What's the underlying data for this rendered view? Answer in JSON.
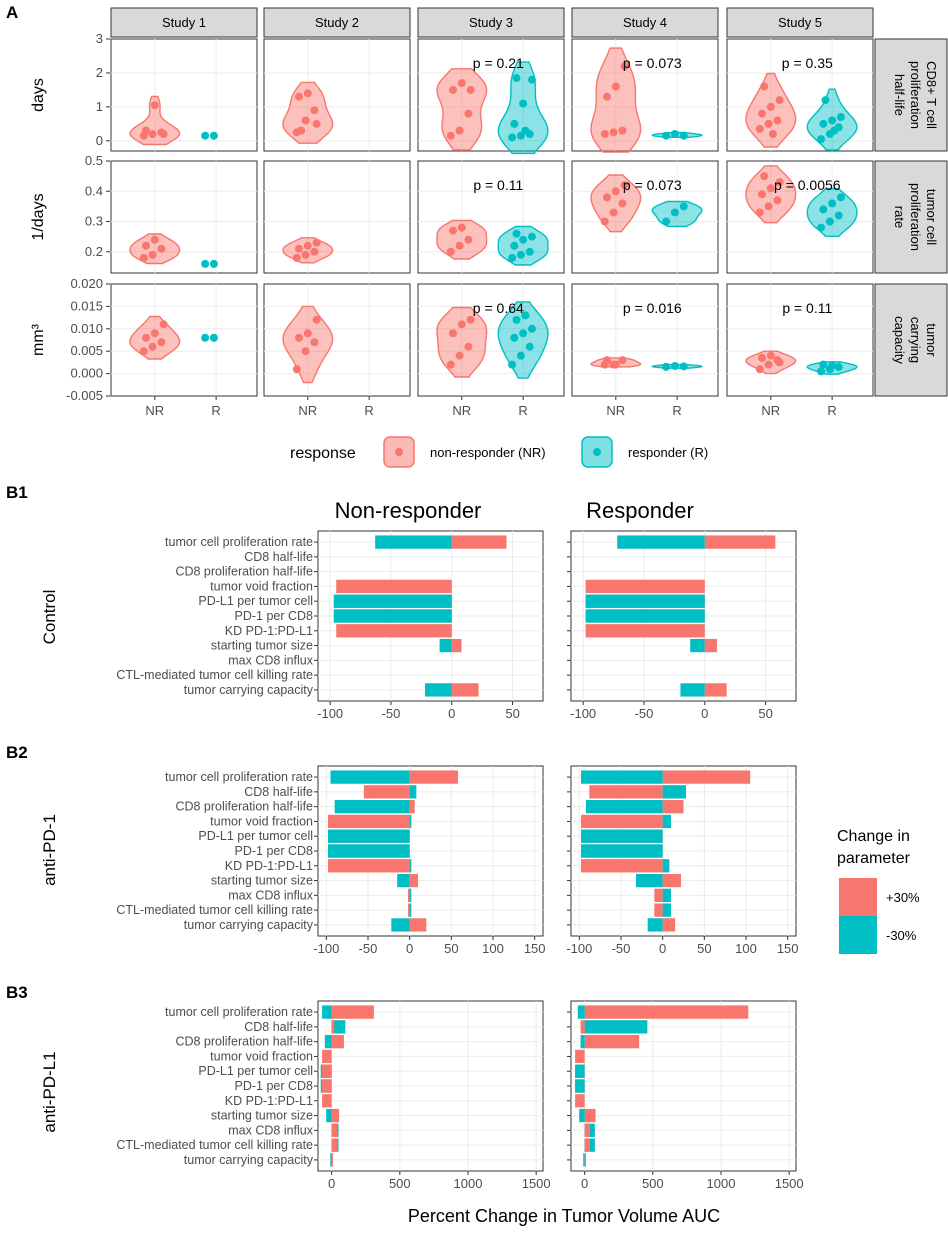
{
  "panel_a": {
    "label": "A",
    "studies": [
      "Study 1",
      "Study 2",
      "Study 3",
      "Study 4",
      "Study 5"
    ],
    "rows": [
      {
        "strip": [
          "CD8+ T cell",
          "proliferation",
          "half-life"
        ],
        "ylabel": "days",
        "ylim": [
          -0.3,
          3
        ],
        "ticks": [
          "3",
          "2",
          "1",
          "0"
        ],
        "tick_values": [
          3,
          2,
          1,
          0
        ],
        "pvalues": [
          "",
          "",
          "p = 0.21",
          "p = 0.073",
          "p = 0.35"
        ]
      },
      {
        "strip": [
          "tumor cell",
          "proliferation",
          "rate"
        ],
        "ylabel": "1/days",
        "ylim": [
          0.13,
          0.5
        ],
        "ticks": [
          "0.5",
          "0.4",
          "0.3",
          "0.2"
        ],
        "tick_values": [
          0.5,
          0.4,
          0.3,
          0.2
        ],
        "pvalues": [
          "",
          "",
          "p = 0.11",
          "p = 0.073",
          "p = 0.0056"
        ]
      },
      {
        "strip": [
          "tumor",
          "carrying",
          "capacity"
        ],
        "ylabel": "mm³",
        "ylim": [
          -0.005,
          0.02
        ],
        "ticks": [
          "0.020",
          "0.015",
          "0.010",
          "0.005",
          "0.000",
          "-0.005"
        ],
        "tick_values": [
          0.02,
          0.015,
          0.01,
          0.005,
          0,
          -0.005
        ],
        "pvalues": [
          "",
          "",
          "p = 0.64",
          "p = 0.016",
          "p = 0.11"
        ]
      }
    ],
    "xticks": [
      "NR",
      "R"
    ],
    "legend": {
      "title": "response",
      "nr": "non-responder (NR)",
      "r": "responder (R)"
    },
    "colors": {
      "nr": "#F8766D",
      "r": "#00BFC4"
    },
    "chart_data": {
      "type": "violin",
      "groups": {
        "row0": [
          {
            "study": 1,
            "nr": [
              0.15,
              0.2,
              0.25,
              0.3,
              1.05,
              0.2
            ],
            "r": [
              0.15,
              0.15
            ]
          },
          {
            "study": 2,
            "nr": [
              0.25,
              0.6,
              0.9,
              1.3,
              1.4,
              0.5,
              0.3
            ],
            "r": []
          },
          {
            "study": 3,
            "nr": [
              0.15,
              0.3,
              0.8,
              1.5,
              1.7,
              1.5
            ],
            "r": [
              0.1,
              0.15,
              0.2,
              0.5,
              1.1,
              1.8,
              1.85,
              0.3
            ]
          },
          {
            "study": 4,
            "nr": [
              0.2,
              0.25,
              0.3,
              1.3,
              1.6,
              2.2
            ],
            "r": [
              0.15,
              0.2,
              0.15
            ]
          },
          {
            "study": 5,
            "nr": [
              0.35,
              0.5,
              0.6,
              0.8,
              1.0,
              1.2,
              1.6,
              0.2
            ],
            "r": [
              0.05,
              0.2,
              0.4,
              0.5,
              0.6,
              0.7,
              1.2,
              0.3
            ]
          }
        ],
        "row1": [
          {
            "study": 1,
            "nr": [
              0.18,
              0.19,
              0.21,
              0.22,
              0.24
            ],
            "r": [
              0.16,
              0.16
            ]
          },
          {
            "study": 2,
            "nr": [
              0.18,
              0.19,
              0.2,
              0.21,
              0.22,
              0.23
            ],
            "r": []
          },
          {
            "study": 3,
            "nr": [
              0.2,
              0.22,
              0.24,
              0.27,
              0.28
            ],
            "r": [
              0.18,
              0.19,
              0.2,
              0.22,
              0.24,
              0.25,
              0.26
            ]
          },
          {
            "study": 4,
            "nr": [
              0.3,
              0.33,
              0.36,
              0.38,
              0.4,
              0.42
            ],
            "r": [
              0.3,
              0.33,
              0.35
            ]
          },
          {
            "study": 5,
            "nr": [
              0.33,
              0.35,
              0.37,
              0.39,
              0.41,
              0.43,
              0.45
            ],
            "r": [
              0.28,
              0.3,
              0.32,
              0.34,
              0.36,
              0.38
            ]
          }
        ],
        "row2": [
          {
            "study": 1,
            "nr": [
              0.005,
              0.006,
              0.007,
              0.008,
              0.009,
              0.011
            ],
            "r": [
              0.008,
              0.008
            ]
          },
          {
            "study": 2,
            "nr": [
              0.001,
              0.005,
              0.007,
              0.008,
              0.009,
              0.012
            ],
            "r": []
          },
          {
            "study": 3,
            "nr": [
              0.002,
              0.004,
              0.006,
              0.009,
              0.011,
              0.012
            ],
            "r": [
              0.002,
              0.004,
              0.006,
              0.008,
              0.009,
              0.01,
              0.012,
              0.013
            ]
          },
          {
            "study": 4,
            "nr": [
              0.002,
              0.002,
              0.003,
              0.003,
              0.002
            ],
            "r": [
              0.0015,
              0.0017,
              0.0016
            ]
          },
          {
            "study": 5,
            "nr": [
              0.001,
              0.002,
              0.003,
              0.0035,
              0.004,
              0.0025
            ],
            "r": [
              0.0005,
              0.001,
              0.0015,
              0.002,
              0.0018
            ]
          }
        ]
      }
    }
  },
  "panel_b": {
    "labels": [
      "B1",
      "B2",
      "B3"
    ],
    "col_titles": [
      "Non-responder",
      "Responder"
    ],
    "row_titles": [
      "Control",
      "anti-PD-1",
      "anti-PD-L1"
    ],
    "params": [
      "tumor cell proliferation rate",
      "CD8 half-life",
      "CD8 proliferation half-life",
      "tumor void fraction",
      "PD-L1 per tumor cell",
      "PD-1 per CD8",
      "KD PD-1:PD-L1",
      "starting tumor size",
      "max CD8 influx",
      "CTL-mediated tumor cell killing rate",
      "tumor carrying capacity"
    ],
    "xlabel": "Percent Change in Tumor Volume AUC",
    "legend": {
      "title_line1": "Change in",
      "title_line2": "parameter",
      "plus": "+30%",
      "minus": "-30%"
    },
    "chart_data": {
      "type": "bar",
      "orientation": "horizontal",
      "series_names": [
        "+30%",
        "-30%"
      ],
      "panels": [
        {
          "row": 0,
          "col": 0,
          "xlim": [
            -110,
            75
          ],
          "ticks": [
            -100,
            -50,
            0,
            50
          ],
          "plus": [
            45,
            0,
            0,
            -95,
            -97,
            -97,
            -95,
            8,
            0,
            0,
            22
          ],
          "minus": [
            -63,
            0,
            0,
            0,
            -97,
            -97,
            0,
            -10,
            0,
            0,
            -22
          ]
        },
        {
          "row": 0,
          "col": 1,
          "xlim": [
            -110,
            75
          ],
          "ticks": [
            -100,
            -50,
            0,
            50
          ],
          "plus": [
            58,
            0,
            0,
            -98,
            -98,
            -98,
            -98,
            10,
            0,
            0,
            18
          ],
          "minus": [
            -72,
            0,
            0,
            0,
            -98,
            -98,
            0,
            -12,
            0,
            0,
            -20
          ]
        },
        {
          "row": 1,
          "col": 0,
          "xlim": [
            -110,
            160
          ],
          "ticks": [
            -100,
            -50,
            0,
            50,
            100,
            150
          ],
          "plus": [
            58,
            -55,
            6,
            -98,
            -98,
            -98,
            -98,
            10,
            -2,
            -2,
            20
          ],
          "minus": [
            -95,
            8,
            -90,
            2,
            -98,
            -98,
            2,
            -15,
            2,
            2,
            -22
          ]
        },
        {
          "row": 1,
          "col": 1,
          "xlim": [
            -110,
            160
          ],
          "ticks": [
            -100,
            -50,
            0,
            50,
            100,
            150
          ],
          "plus": [
            105,
            -88,
            25,
            -98,
            -98,
            -98,
            -98,
            22,
            -10,
            -10,
            15
          ],
          "minus": [
            -98,
            28,
            -92,
            10,
            -98,
            -98,
            8,
            -32,
            10,
            10,
            -18
          ]
        },
        {
          "row": 2,
          "col": 0,
          "xlim": [
            -100,
            1550
          ],
          "ticks": [
            0,
            500,
            1000,
            1500
          ],
          "plus": [
            310,
            20,
            90,
            -70,
            -70,
            -70,
            -70,
            55,
            40,
            40,
            10
          ],
          "minus": [
            -70,
            100,
            -50,
            0,
            -80,
            -80,
            0,
            -40,
            50,
            50,
            -10
          ]
        },
        {
          "row": 2,
          "col": 1,
          "xlim": [
            -100,
            1550
          ],
          "ticks": [
            0,
            500,
            1000,
            1500
          ],
          "plus": [
            1200,
            -30,
            400,
            -70,
            -70,
            -70,
            -70,
            80,
            40,
            40,
            10
          ],
          "minus": [
            -50,
            460,
            -30,
            0,
            -70,
            -70,
            0,
            -40,
            75,
            75,
            -10
          ]
        }
      ]
    }
  }
}
